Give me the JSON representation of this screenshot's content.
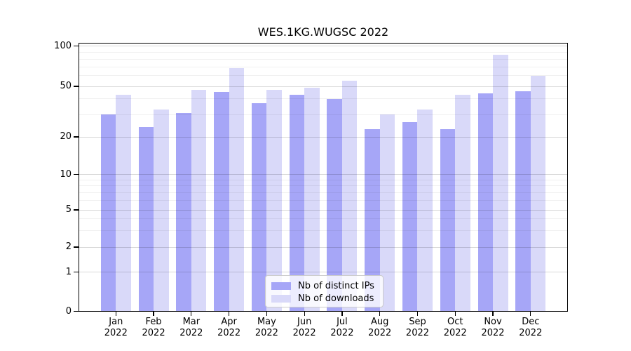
{
  "title": "WES.1KG.WUGSC 2022",
  "chart_data": {
    "type": "bar",
    "title": "WES.1KG.WUGSC 2022",
    "categories": [
      "Jan",
      "Feb",
      "Mar",
      "Apr",
      "May",
      "Jun",
      "Jul",
      "Aug",
      "Sep",
      "Oct",
      "Nov",
      "Dec"
    ],
    "x_tick_year": "2022",
    "series": [
      {
        "name": "Nb of distinct IPs",
        "color": "#a6a6f7",
        "values": [
          30,
          24,
          31,
          45,
          37,
          43,
          40,
          23,
          26,
          23,
          44,
          46
        ]
      },
      {
        "name": "Nb of downloads",
        "color": "#d9d9f9",
        "values": [
          43,
          33,
          47,
          68,
          47,
          49,
          55,
          30,
          33,
          43,
          86,
          60
        ]
      }
    ],
    "xlabel": "",
    "ylabel": "",
    "yscale": "symlog",
    "y_ticks": [
      0,
      1,
      2,
      5,
      10,
      20,
      50,
      100
    ],
    "y_minor_ticks": [
      3,
      4,
      6,
      7,
      8,
      9,
      30,
      40,
      60,
      70,
      80,
      90
    ],
    "ylim": [
      0,
      110
    ],
    "grid": true,
    "legend_position": "lower center"
  }
}
